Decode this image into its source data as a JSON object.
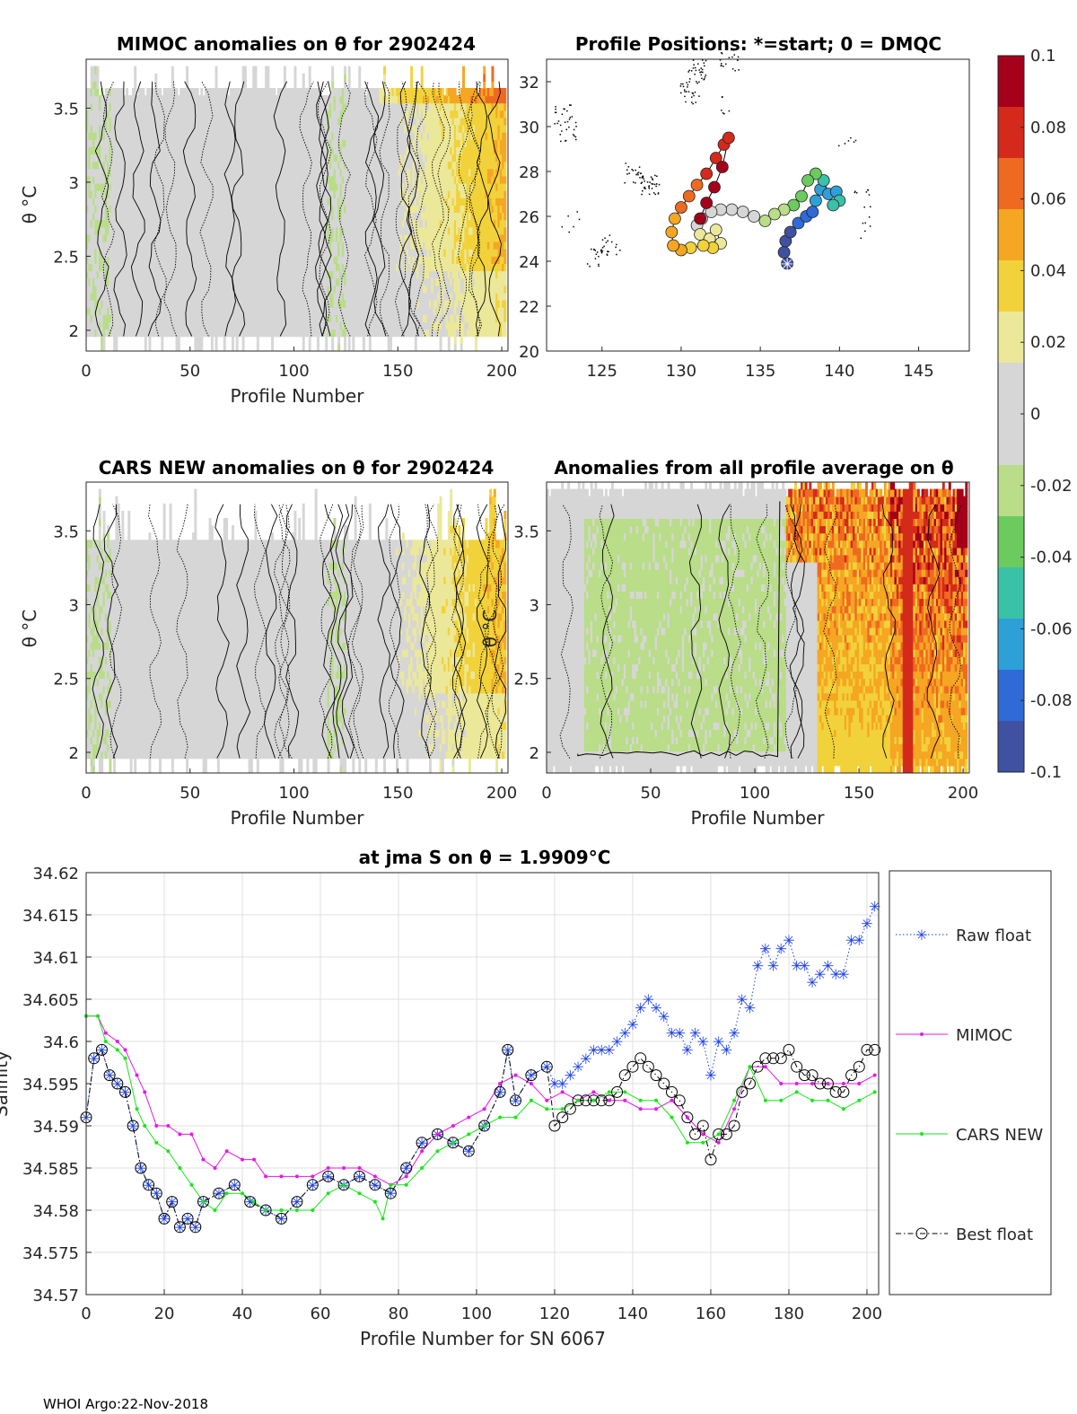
{
  "footer": "WHOI Argo:22-Nov-2018",
  "colors": {
    "colormap": [
      "#3f51a0",
      "#2f6ad6",
      "#2ea0d8",
      "#39c2a8",
      "#6ccb5f",
      "#b9dd88",
      "#d6d6d6",
      "#d6d6d6",
      "#ece89a",
      "#f2d23a",
      "#f5a623",
      "#ef6a21",
      "#d42a1b",
      "#a5001b"
    ],
    "raw": "#1a3fe6",
    "mimoc": "#e619e6",
    "cars": "#1ae61a",
    "best": "#000000",
    "track_land": "#000000"
  },
  "colorbar": {
    "ticks": [
      "0.1",
      "0.08",
      "0.06",
      "0.04",
      "0.02",
      "0",
      "-0.02",
      "-0.04",
      "-0.06",
      "-0.08",
      "-0.1"
    ],
    "min": -0.1,
    "max": 0.1
  },
  "panel_mimoc": {
    "title": "MIMOC anomalies on θ  for 2902424",
    "xlabel": "Profile Number",
    "ylabel": "θ °C",
    "xticks": [
      "0",
      "50",
      "100",
      "150",
      "200"
    ],
    "yticks": [
      "3.5",
      "3",
      "2.5",
      "2"
    ],
    "xlim": [
      0,
      203
    ],
    "ylim": [
      1.86,
      3.83
    ]
  },
  "panel_positions": {
    "title": "Profile Positions: *=start; 0 = DMQC",
    "xticks": [
      "125",
      "130",
      "135",
      "140",
      "145"
    ],
    "yticks": [
      "32",
      "30",
      "28",
      "26",
      "24",
      "22",
      "20"
    ],
    "xlim": [
      121.5,
      148.2
    ],
    "ylim": [
      20,
      33
    ]
  },
  "panel_cars": {
    "title": "CARS NEW anomalies on θ for 2902424",
    "xlabel": "Profile Number",
    "ylabel": "θ °C",
    "xticks": [
      "0",
      "50",
      "100",
      "150",
      "200"
    ],
    "yticks": [
      "3.5",
      "3",
      "2.5",
      "2"
    ],
    "xlim": [
      0,
      203
    ],
    "ylim": [
      1.86,
      3.83
    ]
  },
  "panel_avg": {
    "title": "Anomalies from all profile average on θ",
    "xlabel": "Profile Number",
    "ylabel": "θ °C",
    "xticks": [
      "0",
      "50",
      "100",
      "150",
      "200"
    ],
    "yticks": [
      "3.5",
      "3",
      "2.5",
      "2"
    ],
    "xlim": [
      0,
      203
    ],
    "ylim": [
      1.86,
      3.83
    ]
  },
  "chart_data": {
    "type": "line",
    "title": "at jma S on θ = 1.9909°C",
    "xlabel": "Profile Number for SN 6067",
    "ylabel": "Salinity",
    "xlim": [
      0,
      203
    ],
    "ylim": [
      34.57,
      34.62
    ],
    "xticks": [
      "0",
      "20",
      "40",
      "60",
      "80",
      "100",
      "120",
      "140",
      "160",
      "180",
      "200"
    ],
    "yticks": [
      "34.62",
      "34.615",
      "34.61",
      "34.605",
      "34.6",
      "34.595",
      "34.59",
      "34.585",
      "34.58",
      "34.575",
      "34.57"
    ],
    "grid": true,
    "legend": [
      "Raw float",
      "MIMOC",
      "CARS NEW",
      "Best float"
    ],
    "series": [
      {
        "name": "Raw float",
        "x": [
          0,
          2,
          4,
          6,
          8,
          10,
          12,
          14,
          16,
          18,
          20,
          22,
          24,
          26,
          28,
          30,
          34,
          38,
          42,
          46,
          50,
          54,
          58,
          62,
          66,
          70,
          74,
          78,
          82,
          86,
          90,
          94,
          98,
          102,
          106,
          108,
          110,
          114,
          118,
          120,
          122,
          124,
          126,
          128,
          130,
          132,
          134,
          136,
          138,
          140,
          142,
          144,
          146,
          148,
          150,
          152,
          154,
          156,
          158,
          160,
          162,
          164,
          166,
          168,
          170,
          172,
          174,
          176,
          178,
          180,
          182,
          184,
          186,
          188,
          190,
          192,
          194,
          196,
          198,
          200,
          202
        ],
        "values": [
          34.591,
          34.598,
          34.599,
          34.596,
          34.595,
          34.594,
          34.59,
          34.585,
          34.583,
          34.582,
          34.579,
          34.581,
          34.578,
          34.579,
          34.578,
          34.581,
          34.582,
          34.583,
          34.581,
          34.58,
          34.579,
          34.581,
          34.583,
          34.584,
          34.583,
          34.584,
          34.583,
          34.582,
          34.585,
          34.588,
          34.589,
          34.588,
          34.587,
          34.59,
          34.594,
          34.599,
          34.593,
          34.596,
          34.597,
          34.595,
          34.595,
          34.596,
          34.597,
          34.598,
          34.599,
          34.599,
          34.599,
          34.6,
          34.601,
          34.602,
          34.604,
          34.605,
          34.604,
          34.603,
          34.601,
          34.601,
          34.599,
          34.601,
          34.6,
          34.596,
          34.6,
          34.599,
          34.601,
          34.605,
          34.604,
          34.609,
          34.611,
          34.609,
          34.611,
          34.612,
          34.609,
          34.609,
          34.607,
          34.608,
          34.609,
          34.608,
          34.608,
          34.612,
          34.612,
          34.614,
          34.616
        ]
      },
      {
        "name": "MIMOC",
        "x": [
          0,
          3,
          5,
          8,
          10,
          13,
          15,
          18,
          21,
          24,
          27,
          30,
          33,
          36,
          40,
          43,
          46,
          50,
          54,
          58,
          62,
          66,
          70,
          74,
          78,
          82,
          86,
          90,
          94,
          98,
          102,
          106,
          110,
          114,
          118,
          122,
          126,
          130,
          134,
          138,
          142,
          146,
          150,
          154,
          158,
          162,
          166,
          170,
          174,
          178,
          182,
          186,
          190,
          194,
          198,
          202
        ],
        "values": [
          34.603,
          34.603,
          34.601,
          34.6,
          34.599,
          34.596,
          34.594,
          34.59,
          34.59,
          34.589,
          34.589,
          34.586,
          34.585,
          34.587,
          34.586,
          34.586,
          34.584,
          34.584,
          34.584,
          34.584,
          34.585,
          34.585,
          34.585,
          34.584,
          34.583,
          34.584,
          34.587,
          34.589,
          34.59,
          34.591,
          34.592,
          34.595,
          34.596,
          34.595,
          34.593,
          34.594,
          34.593,
          34.594,
          34.593,
          34.593,
          34.592,
          34.592,
          34.593,
          34.591,
          34.589,
          34.588,
          34.592,
          34.597,
          34.597,
          34.595,
          34.595,
          34.595,
          34.595,
          34.595,
          34.595,
          34.596
        ]
      },
      {
        "name": "CARS NEW",
        "x": [
          0,
          3,
          5,
          8,
          10,
          13,
          15,
          18,
          21,
          24,
          27,
          30,
          33,
          36,
          40,
          43,
          46,
          50,
          54,
          58,
          62,
          66,
          70,
          74,
          76,
          78,
          82,
          86,
          90,
          94,
          98,
          102,
          106,
          110,
          114,
          118,
          122,
          126,
          130,
          134,
          138,
          142,
          146,
          150,
          154,
          158,
          162,
          166,
          170,
          174,
          178,
          182,
          186,
          190,
          194,
          198,
          202
        ],
        "values": [
          34.603,
          34.603,
          34.6,
          34.599,
          34.598,
          34.592,
          34.59,
          34.588,
          34.587,
          34.585,
          34.583,
          34.581,
          34.58,
          34.582,
          34.582,
          34.581,
          34.58,
          34.58,
          34.58,
          34.58,
          34.582,
          34.583,
          34.582,
          34.581,
          34.579,
          34.583,
          34.583,
          34.585,
          34.587,
          34.588,
          34.589,
          34.59,
          34.591,
          34.591,
          34.593,
          34.592,
          34.592,
          34.593,
          34.593,
          34.594,
          34.594,
          34.593,
          34.593,
          34.591,
          34.588,
          34.588,
          34.589,
          34.593,
          34.597,
          34.593,
          34.593,
          34.594,
          34.593,
          34.593,
          34.592,
          34.593,
          34.594
        ]
      },
      {
        "name": "Best float",
        "x": [
          0,
          2,
          4,
          6,
          8,
          10,
          12,
          14,
          16,
          18,
          20,
          22,
          24,
          26,
          28,
          30,
          34,
          38,
          42,
          46,
          50,
          54,
          58,
          62,
          66,
          70,
          74,
          78,
          82,
          86,
          90,
          94,
          98,
          102,
          106,
          108,
          110,
          114,
          118,
          120,
          122,
          124,
          126,
          128,
          130,
          132,
          134,
          136,
          138,
          140,
          142,
          144,
          146,
          148,
          150,
          152,
          154,
          156,
          158,
          160,
          162,
          164,
          166,
          168,
          170,
          172,
          174,
          176,
          178,
          180,
          182,
          184,
          186,
          188,
          190,
          192,
          194,
          196,
          198,
          200,
          202
        ],
        "values": [
          34.591,
          34.598,
          34.599,
          34.596,
          34.595,
          34.594,
          34.59,
          34.585,
          34.583,
          34.582,
          34.579,
          34.581,
          34.578,
          34.579,
          34.578,
          34.581,
          34.582,
          34.583,
          34.581,
          34.58,
          34.579,
          34.581,
          34.583,
          34.584,
          34.583,
          34.584,
          34.583,
          34.582,
          34.585,
          34.588,
          34.589,
          34.588,
          34.587,
          34.59,
          34.594,
          34.599,
          34.593,
          34.596,
          34.597,
          34.59,
          34.591,
          34.592,
          34.593,
          34.593,
          34.593,
          34.593,
          34.593,
          34.594,
          34.596,
          34.597,
          34.598,
          34.597,
          34.596,
          34.595,
          34.594,
          34.593,
          34.591,
          34.589,
          34.59,
          34.586,
          34.589,
          34.589,
          34.59,
          34.594,
          34.595,
          34.597,
          34.598,
          34.598,
          34.598,
          34.599,
          34.597,
          34.596,
          34.596,
          34.595,
          34.595,
          34.594,
          34.594,
          34.596,
          34.597,
          34.599,
          34.599
        ]
      }
    ]
  }
}
